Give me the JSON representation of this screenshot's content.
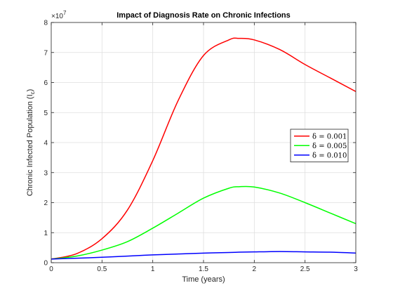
{
  "chart_data": {
    "type": "line",
    "title": "Impact of Diagnosis Rate on Chronic Infections",
    "xlabel": "Time (years)",
    "ylabel_main": "Chronic Infected Population (I",
    "ylabel_sub": "c",
    "ylabel_tail": ")",
    "xlim": [
      0,
      3
    ],
    "ylim": [
      0,
      8
    ],
    "y_exponent_base": "×10",
    "y_exponent_power": "7",
    "xticks": [
      "0",
      "0.5",
      "1",
      "1.5",
      "2",
      "2.5",
      "3"
    ],
    "yticks": [
      "0",
      "1",
      "2",
      "3",
      "4",
      "5",
      "6",
      "7",
      "8"
    ],
    "grid": true,
    "legend_position": "right",
    "x": [
      0,
      0.25,
      0.5,
      0.75,
      1.0,
      1.25,
      1.5,
      1.75,
      1.85,
      2.0,
      2.25,
      2.5,
      2.75,
      3.0
    ],
    "series": [
      {
        "name": "δ = 0.001",
        "color": "#ff0000",
        "values": [
          0.12,
          0.3,
          0.8,
          1.75,
          3.4,
          5.4,
          6.9,
          7.42,
          7.47,
          7.42,
          7.1,
          6.6,
          6.15,
          5.7
        ]
      },
      {
        "name": "δ = 0.005",
        "color": "#00ff00",
        "values": [
          0.12,
          0.22,
          0.42,
          0.7,
          1.15,
          1.65,
          2.15,
          2.48,
          2.53,
          2.52,
          2.32,
          2.0,
          1.65,
          1.3
        ]
      },
      {
        "name": "δ = 0.010",
        "color": "#0000ff",
        "values": [
          0.12,
          0.15,
          0.18,
          0.22,
          0.26,
          0.29,
          0.32,
          0.34,
          0.35,
          0.36,
          0.37,
          0.36,
          0.35,
          0.32
        ]
      }
    ]
  }
}
